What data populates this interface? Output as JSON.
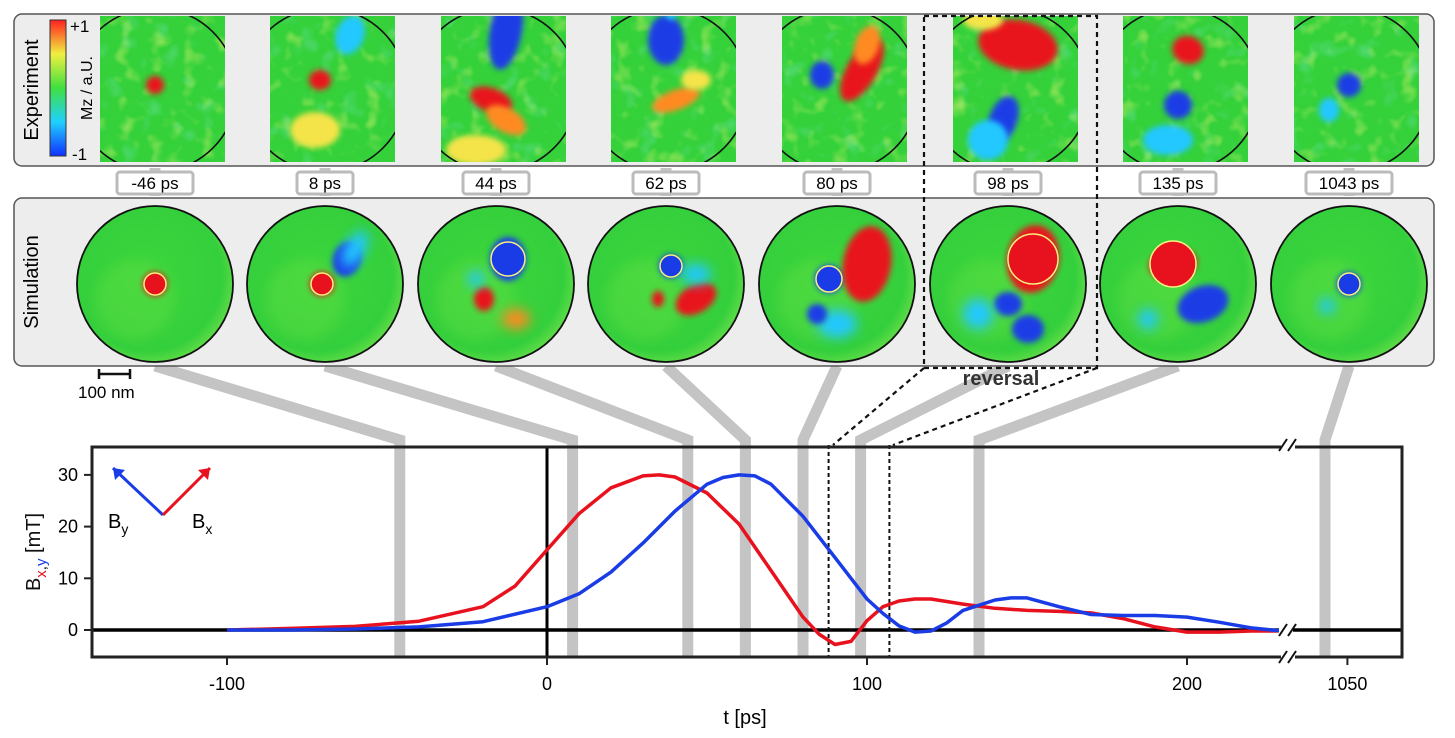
{
  "figure": {
    "row_labels": [
      "Experiment",
      "Simulation"
    ],
    "colorbar": {
      "max_label": "+1",
      "min_label": "-1",
      "label": "Mz / a.U.",
      "colors": [
        "#1030ff",
        "#20d0ff",
        "#40e040",
        "#f0f040",
        "#ff2020"
      ]
    },
    "frames": [
      {
        "time_label": "-46 ps",
        "t": -46,
        "highlighted": false
      },
      {
        "time_label": "8 ps",
        "t": 8,
        "highlighted": false
      },
      {
        "time_label": "44 ps",
        "t": 44,
        "highlighted": false
      },
      {
        "time_label": "62 ps",
        "t": 62,
        "highlighted": false
      },
      {
        "time_label": "80 ps",
        "t": 80,
        "highlighted": false
      },
      {
        "time_label": "98 ps",
        "t": 98,
        "highlighted": true
      },
      {
        "time_label": "135 ps",
        "t": 135,
        "highlighted": false
      },
      {
        "time_label": "1043 ps",
        "t": 1043,
        "highlighted": false
      }
    ],
    "scale_bar_label": "100 nm",
    "reversal_label": "reversal",
    "colors": {
      "red": "#e8121e",
      "blue": "#1a3ce6",
      "green": "#34d13a",
      "panel_bg": "#ededed",
      "guide": "#c4c4c4"
    }
  },
  "chart_data": {
    "type": "line",
    "title": "",
    "xlabel": "t  [ps]",
    "ylabel_parts": [
      "B",
      "x",
      ",",
      "y",
      "  [mT]"
    ],
    "xlim": [
      -145,
      230
    ],
    "ylim": [
      -5,
      35
    ],
    "x_ticks": [
      -100,
      0,
      100,
      200
    ],
    "x_tick_labels": [
      "-100",
      "0",
      "100",
      "200"
    ],
    "y_ticks": [
      0,
      10,
      20,
      30
    ],
    "y_tick_labels": [
      "0",
      "10",
      "20",
      "30"
    ],
    "axis_break": {
      "label": "1050",
      "value": 1050
    },
    "legend": {
      "entries": [
        {
          "name": "By",
          "base": "B",
          "sub": "y",
          "color": "#1a3ce6"
        },
        {
          "name": "Bx",
          "base": "B",
          "sub": "x",
          "color": "#e8121e"
        }
      ],
      "position": "top-left"
    },
    "series": [
      {
        "name": "Bx",
        "color": "#e8121e",
        "x": [
          -100,
          -80,
          -60,
          -40,
          -20,
          -10,
          0,
          10,
          20,
          30,
          35,
          40,
          50,
          60,
          70,
          80,
          85,
          90,
          95,
          100,
          105,
          110,
          115,
          120,
          130,
          140,
          150,
          160,
          170,
          180,
          190,
          200,
          210,
          220,
          228
        ],
        "y": [
          0,
          0.3,
          0.7,
          1.7,
          4.5,
          8.5,
          15.5,
          22.5,
          27.5,
          29.8,
          30,
          29.6,
          26.5,
          20.5,
          11.5,
          2.5,
          -0.8,
          -2.8,
          -2.2,
          1.8,
          4.5,
          5.6,
          6,
          6,
          5,
          4.2,
          3.8,
          3.6,
          3.3,
          2.2,
          0.6,
          -0.4,
          -0.4,
          -0.2,
          -0.2
        ]
      },
      {
        "name": "By",
        "color": "#1a3ce6",
        "x": [
          -100,
          -80,
          -60,
          -40,
          -20,
          0,
          10,
          20,
          30,
          40,
          50,
          55,
          60,
          65,
          70,
          80,
          90,
          95,
          100,
          105,
          110,
          115,
          120,
          125,
          130,
          140,
          145,
          150,
          160,
          170,
          180,
          190,
          200,
          210,
          220,
          228
        ],
        "y": [
          0,
          0,
          0.2,
          0.6,
          1.6,
          4.5,
          7,
          11.2,
          16.8,
          23,
          28.2,
          29.5,
          30,
          29.8,
          28.2,
          22,
          14,
          10,
          6,
          3.2,
          0.8,
          -0.4,
          -0.2,
          1.4,
          3.8,
          5.8,
          6.2,
          6.2,
          4.5,
          3,
          2.8,
          2.8,
          2.5,
          1.5,
          0.4,
          -0.1
        ]
      }
    ]
  }
}
